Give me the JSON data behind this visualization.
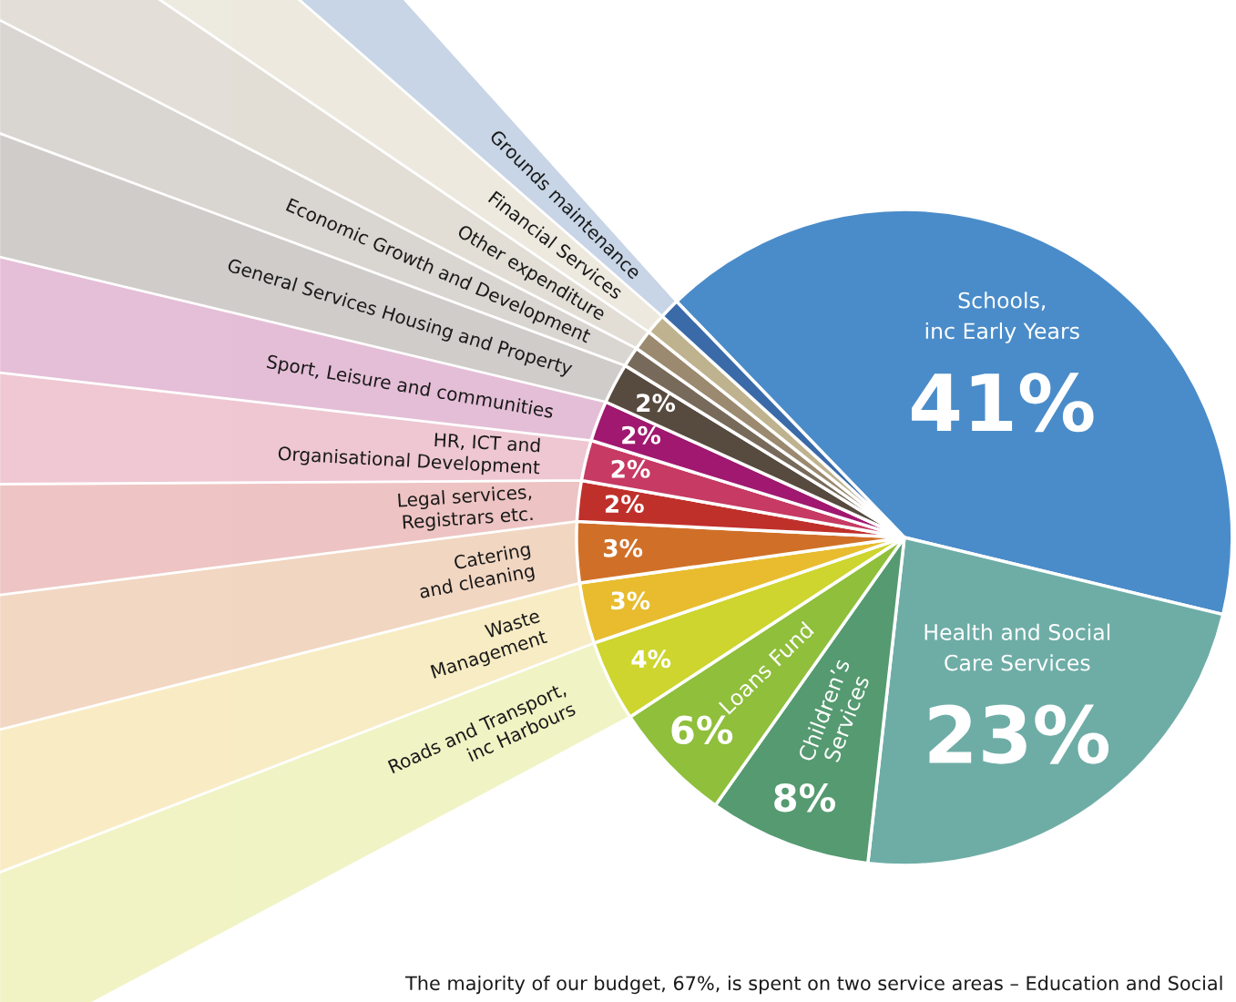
{
  "chart_data": {
    "type": "pie",
    "categories": [
      "Schools,\ninc Early Years",
      "Health and Social\nCare Services",
      "Children’s\nServices",
      "Loans Fund",
      "Roads and Transport,\ninc Harbours",
      "Waste\nManagement",
      "Catering\nand cleaning",
      "Legal services,\nRegistrars etc.",
      "HR, ICT and\nOrganisational Development",
      "Sport, Leisure and communities",
      "General Services Housing and Property",
      "Economic Growth and Development",
      "Other expenditure",
      "Financial Services",
      "Grounds maintenance"
    ],
    "values": [
      41,
      23,
      8,
      6,
      4,
      3,
      3,
      2,
      2,
      2,
      2,
      1,
      1,
      1,
      1
    ],
    "colors": [
      "#4a8cc9",
      "#6eada6",
      "#559a70",
      "#8fbf3b",
      "#cdd52e",
      "#e8bc2e",
      "#d07028",
      "#c0302b",
      "#c63a63",
      "#a0186f",
      "#574a3f",
      "#786a5a",
      "#9b8a70",
      "#bfb28e",
      "#3a6aa8"
    ],
    "value_labels": [
      "41%",
      "23%",
      "8%",
      "6%",
      "4%",
      "3%",
      "3%",
      "2%",
      "2%",
      "2%",
      "2%",
      null,
      null,
      null,
      null
    ],
    "annotations": [
      "The majority of our budget, 67%, is spent on two service areas – Education and Social"
    ]
  }
}
